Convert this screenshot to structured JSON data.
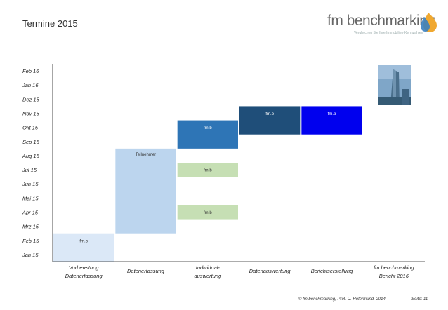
{
  "page": {
    "title": "Termine 2015",
    "logo_text": "fm benchmarking",
    "logo_tagline": "Vergleichen Sie Ihre Immobilien-Kennzahlen",
    "footer_left": "© fm.benchmarking, Prof. U. Rotermund, 2014",
    "footer_right": "Seite: 11"
  },
  "chart_data": {
    "type": "bar",
    "orientation": "gantt",
    "title": "Termine 2015",
    "y_categories": [
      "Jan 15",
      "Feb 15",
      "Mrz 15",
      "Apr 15",
      "Mai 15",
      "Jun 15",
      "Jul 15",
      "Aug 15",
      "Sep 15",
      "Okt 15",
      "Nov 15",
      "Dez 15",
      "Jan 16",
      "Feb 16"
    ],
    "x_categories": [
      [
        "Vorbereitung",
        "Datenerfassung"
      ],
      [
        "Datenerfassung"
      ],
      [
        "Individual-",
        "auswertung"
      ],
      [
        "Datenauswertung"
      ],
      [
        "Berichtserstellung"
      ],
      [
        "fm.benchmarking",
        "Bericht 2016"
      ]
    ],
    "grid": false,
    "bars": [
      {
        "column": 0,
        "start": "Jan 15",
        "end": "Feb 15",
        "label": "fm.b",
        "color": "#dbe8f7"
      },
      {
        "column": 1,
        "start": "Mrz 15",
        "end": "Aug 15",
        "label": "Teilnehmer",
        "color": "#bcd5ee"
      },
      {
        "column": 2,
        "start": "Apr 15",
        "end": "Apr 15",
        "label": "fm.b",
        "color": "#c6dfb4"
      },
      {
        "column": 2,
        "start": "Jul 15",
        "end": "Jul 15",
        "label": "fm.b",
        "color": "#c6dfb4"
      },
      {
        "column": 2,
        "start": "Sep 15",
        "end": "Okt 15",
        "label": "fm.b",
        "color": "#2e75b6"
      },
      {
        "column": 3,
        "start": "Okt 15",
        "end": "Nov 15",
        "label": "fm.b",
        "color": "#1f4e79"
      },
      {
        "column": 4,
        "start": "Okt 15",
        "end": "Nov 15",
        "label": "fm.b",
        "color": "#0000ee"
      }
    ]
  }
}
